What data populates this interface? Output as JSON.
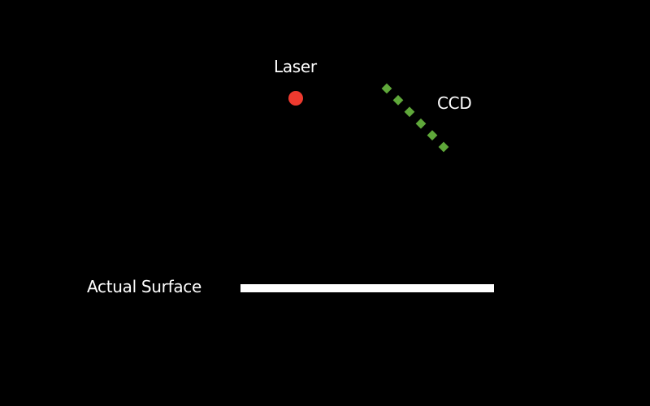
{
  "diagram": {
    "background_color": "#000000",
    "laser": {
      "label": "Laser",
      "color": "#ee3a2f"
    },
    "ccd": {
      "label": "CCD",
      "color": "#5fa83a",
      "pixel_count": 6
    },
    "surface": {
      "label": "Actual Surface",
      "color": "#ffffff"
    }
  }
}
